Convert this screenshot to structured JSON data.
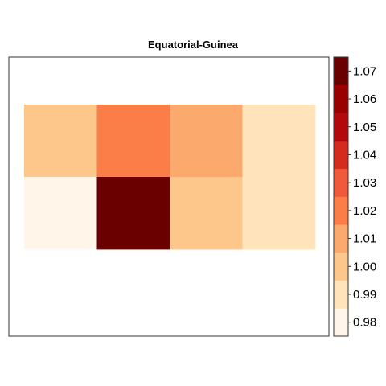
{
  "chart_data": {
    "type": "heatmap",
    "title": "Equatorial-Guinea",
    "xlabel": "",
    "ylabel": "",
    "rows": 2,
    "cols": 4,
    "values": [
      [
        1.002,
        1.025,
        1.012,
        0.99
      ],
      [
        0.98,
        1.07,
        1.002,
        0.99
      ]
    ],
    "colorbar": {
      "ticks": [
        "0.98",
        "0.99",
        "1.00",
        "1.01",
        "1.02",
        "1.03",
        "1.04",
        "1.05",
        "1.06",
        "1.07"
      ],
      "range": [
        0.975,
        1.075
      ],
      "colors": [
        "#fff5e8",
        "#fee3bb",
        "#fdc68b",
        "#fca96d",
        "#fb7d48",
        "#f05a3a",
        "#d52b1e",
        "#b3090d",
        "#9b0000",
        "#6b0000"
      ]
    },
    "grid": false,
    "legend_position": "right"
  }
}
